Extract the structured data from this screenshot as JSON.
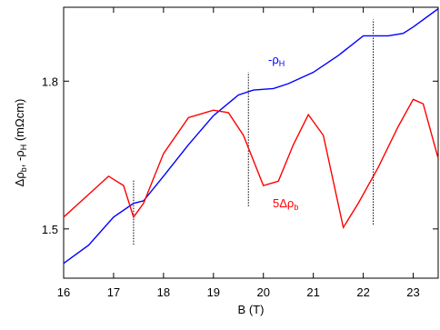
{
  "chart_data": {
    "type": "line",
    "xlabel": "B (T)",
    "ylabel": {
      "parts": [
        "Δρ",
        "b",
        ", -ρ",
        "H",
        " (mΩcm)"
      ]
    },
    "xlim": [
      16,
      23.5
    ],
    "xticks": [
      16,
      17,
      18,
      19,
      20,
      21,
      22,
      23
    ],
    "ylim": [
      1.4,
      1.95
    ],
    "yticks": [
      1.5,
      1.8
    ],
    "series": [
      {
        "name": {
          "main": "-ρ",
          "sub": "H"
        },
        "color": "#0000ff",
        "x": [
          16,
          16.5,
          17,
          17.4,
          17.6,
          18,
          18.5,
          19,
          19.5,
          19.8,
          20.2,
          20.5,
          21,
          21.5,
          22,
          22.5,
          22.8,
          23,
          23.5
        ],
        "values": [
          1.43,
          1.467,
          1.524,
          1.552,
          1.557,
          1.607,
          1.671,
          1.73,
          1.772,
          1.782,
          1.785,
          1.795,
          1.818,
          1.852,
          1.892,
          1.892,
          1.897,
          1.91,
          1.947
        ]
      },
      {
        "name": {
          "main": "5Δρ",
          "sub": "b"
        },
        "color": "#ff0000",
        "x": [
          16,
          16.5,
          16.9,
          17.2,
          17.4,
          17.6,
          18,
          18.5,
          19,
          19.3,
          19.6,
          20,
          20.3,
          20.6,
          20.9,
          21.2,
          21.6,
          21.9,
          22.3,
          22.7,
          23,
          23.2,
          23.5
        ],
        "values": [
          1.524,
          1.57,
          1.607,
          1.588,
          1.524,
          1.552,
          1.653,
          1.726,
          1.741,
          1.736,
          1.69,
          1.588,
          1.597,
          1.671,
          1.732,
          1.69,
          1.503,
          1.552,
          1.625,
          1.708,
          1.763,
          1.754,
          1.643
        ]
      }
    ],
    "vlines": [
      {
        "x": 17.4,
        "ylim": [
          1.468,
          1.6
        ]
      },
      {
        "x": 19.7,
        "ylim": [
          1.546,
          1.818
        ]
      },
      {
        "x": 22.2,
        "ylim": [
          1.509,
          1.925
        ]
      }
    ]
  }
}
